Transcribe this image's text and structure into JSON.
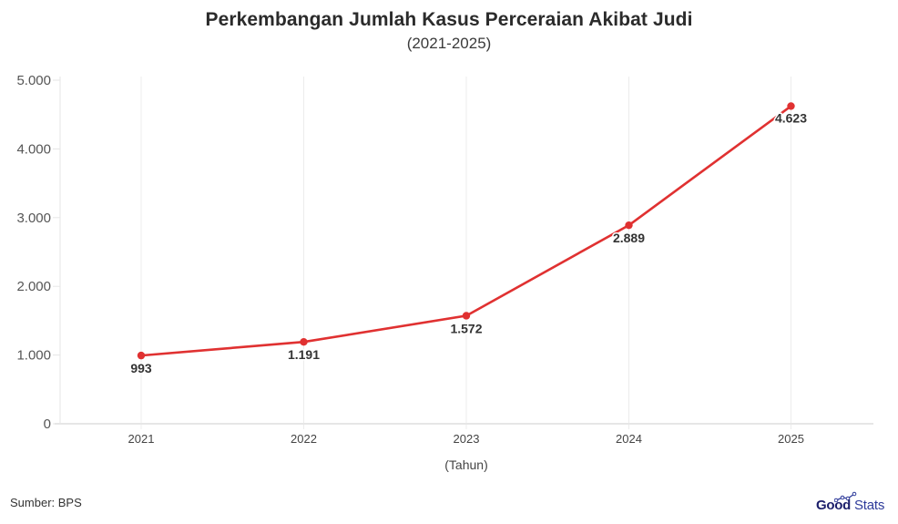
{
  "header": {
    "title": "Perkembangan Jumlah Kasus Perceraian Akibat Judi",
    "subtitle": "(2021-2025)"
  },
  "footer": {
    "source": "Sumber: BPS",
    "logo_bold": "Good",
    "logo_regular": "Stats"
  },
  "colors": {
    "line": "#e03131",
    "grid": "#ececec",
    "axis": "#e6e6e6",
    "logo_primary": "#1c1f6b",
    "logo_secondary": "#2d3a9a"
  },
  "chart_data": {
    "type": "line",
    "title": "Perkembangan Jumlah Kasus Perceraian Akibat Judi",
    "subtitle": "(2021-2025)",
    "xlabel": "(Tahun)",
    "ylabel": "",
    "categories": [
      "2021",
      "2022",
      "2023",
      "2024",
      "2025"
    ],
    "series": [
      {
        "name": "Jumlah Kasus Perceraian Akibat Judi",
        "values": [
          993,
          1191,
          1572,
          2889,
          4623
        ],
        "labels": [
          "993",
          "1.191",
          "1.572",
          "2.889",
          "4.623"
        ]
      }
    ],
    "ylim": [
      0,
      5000
    ],
    "yticks": [
      0,
      1000,
      2000,
      3000,
      4000,
      5000
    ],
    "ytick_labels": [
      "0",
      "1.000",
      "2.000",
      "3.000",
      "4.000",
      "5.000"
    ],
    "grid": "vertical",
    "legend": "none",
    "source": "Sumber: BPS"
  }
}
